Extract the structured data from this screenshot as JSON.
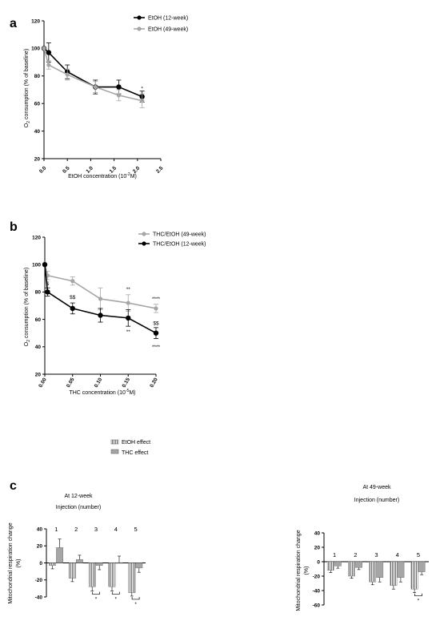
{
  "panel_a": {
    "letter": "a",
    "ylabel_main": "O",
    "ylabel_sub": "2",
    "ylabel_rest": " consumption (% of baseline)",
    "xlabel_main": "EtOH concentration (10",
    "xlabel_sup": "-2",
    "xlabel_rest": "M)"
  },
  "panel_b": {
    "letter": "b",
    "ylabel_main": "O",
    "ylabel_sub": "2",
    "ylabel_rest": " consumption (% of baseline)",
    "xlabel_main": "THC concentration (10",
    "xlabel_sup": "-5",
    "xlabel_rest": "M)"
  },
  "panel_c": {
    "letter": "c",
    "left_title": "At 12-week",
    "left_subtitle": "Injection (number)",
    "right_title": "At 49-week",
    "right_subtitle": "Injection (number)",
    "ylabel_line1": "Mitochondrial respiration change",
    "ylabel_line2": "(%)",
    "legend": [
      {
        "label": "EtOH effect",
        "pattern": "striped"
      },
      {
        "label": "THC effect",
        "pattern": "solid"
      }
    ]
  },
  "chart_data": [
    {
      "type": "line",
      "xlim": [
        0.0,
        2.5
      ],
      "ylim": [
        20,
        120
      ],
      "xticks": [
        "0.0",
        "0.5",
        "1.0",
        "1.5",
        "2.0",
        "2.5"
      ],
      "yticks": [
        "20",
        "40",
        "60",
        "80",
        "100",
        "120"
      ],
      "legend_position": "top-right",
      "series": [
        {
          "name": "EtOH (12-week)",
          "color": "#000000",
          "x": [
            0.0,
            0.1,
            0.5,
            1.1,
            1.6,
            2.1
          ],
          "y": [
            100,
            97,
            83,
            72,
            72,
            65
          ],
          "err": [
            0,
            7,
            5,
            5,
            5,
            4
          ]
        },
        {
          "name": "EtOH (49-week)",
          "color": "#a6a6a6",
          "x": [
            0.0,
            0.1,
            0.5,
            1.1,
            1.6,
            2.1
          ],
          "y": [
            100,
            88,
            81,
            72,
            66,
            62
          ],
          "err": [
            0,
            3,
            4,
            4,
            4,
            5
          ]
        }
      ],
      "annotations": [
        {
          "text": "*",
          "x": 2.1,
          "y": 71
        }
      ]
    },
    {
      "type": "line",
      "xlim": [
        0.0,
        0.2
      ],
      "ylim": [
        20,
        120
      ],
      "xticks": [
        "0.00",
        "0.05",
        "0.10",
        "0.15",
        "0.20"
      ],
      "yticks": [
        "20",
        "40",
        "60",
        "80",
        "100",
        "120"
      ],
      "legend_position": "top-right",
      "series": [
        {
          "name": "THC/EtOH (49-week)",
          "color": "#a6a6a6",
          "x": [
            0.0,
            0.005,
            0.05,
            0.1,
            0.15,
            0.2
          ],
          "y": [
            100,
            92,
            88,
            75,
            72,
            68
          ],
          "err": [
            0,
            3,
            3,
            8,
            6,
            3
          ]
        },
        {
          "name": "THC/EtOH (12-week)",
          "color": "#000000",
          "x": [
            0.0,
            0.005,
            0.05,
            0.1,
            0.15,
            0.2
          ],
          "y": [
            100,
            80,
            68,
            63,
            61,
            50
          ],
          "err": [
            0,
            3,
            4,
            5,
            6,
            4
          ]
        }
      ],
      "annotations": [
        {
          "text": "$",
          "x": 0.005,
          "y": 86
        },
        {
          "text": "$$",
          "x": 0.05,
          "y": 76
        },
        {
          "text": "**",
          "x": 0.15,
          "y": 82
        },
        {
          "text": "**",
          "x": 0.15,
          "y": 51
        },
        {
          "text": "****",
          "x": 0.2,
          "y": 75
        },
        {
          "text": "$$",
          "x": 0.2,
          "y": 57
        },
        {
          "text": "****",
          "x": 0.2,
          "y": 40
        }
      ]
    },
    {
      "type": "bar",
      "ylim": [
        -40,
        40
      ],
      "yticks": [
        "-40",
        "-20",
        "0",
        "20",
        "40"
      ],
      "categories": [
        "1",
        "2",
        "3",
        "4",
        "5"
      ],
      "series": [
        {
          "name": "EtOH effect",
          "pattern": "striped",
          "values": [
            -3,
            -18,
            -28,
            -28,
            -35
          ],
          "err": [
            4,
            4,
            5,
            5,
            4
          ]
        },
        {
          "name": "THC effect",
          "pattern": "solid",
          "values": [
            18,
            4,
            -3,
            0,
            -6
          ],
          "err": [
            10,
            5,
            5,
            8,
            5
          ]
        }
      ],
      "significance": [
        {
          "category": "3",
          "text": "*"
        },
        {
          "category": "4",
          "text": "*"
        },
        {
          "category": "5",
          "text": "*"
        }
      ]
    },
    {
      "type": "bar",
      "ylim": [
        -60,
        40
      ],
      "yticks": [
        "-60",
        "-40",
        "-20",
        "0",
        "20",
        "40"
      ],
      "categories": [
        "1",
        "2",
        "3",
        "4",
        "5"
      ],
      "series": [
        {
          "name": "EtOH effect",
          "pattern": "striped",
          "values": [
            -12,
            -20,
            -28,
            -33,
            -38
          ],
          "err": [
            3,
            3,
            4,
            5,
            5
          ]
        },
        {
          "name": "THC effect",
          "pattern": "solid",
          "values": [
            -6,
            -8,
            -22,
            -22,
            -14
          ],
          "err": [
            3,
            3,
            6,
            6,
            4
          ]
        }
      ],
      "significance": [
        {
          "category": "5",
          "text": "*"
        }
      ]
    }
  ]
}
